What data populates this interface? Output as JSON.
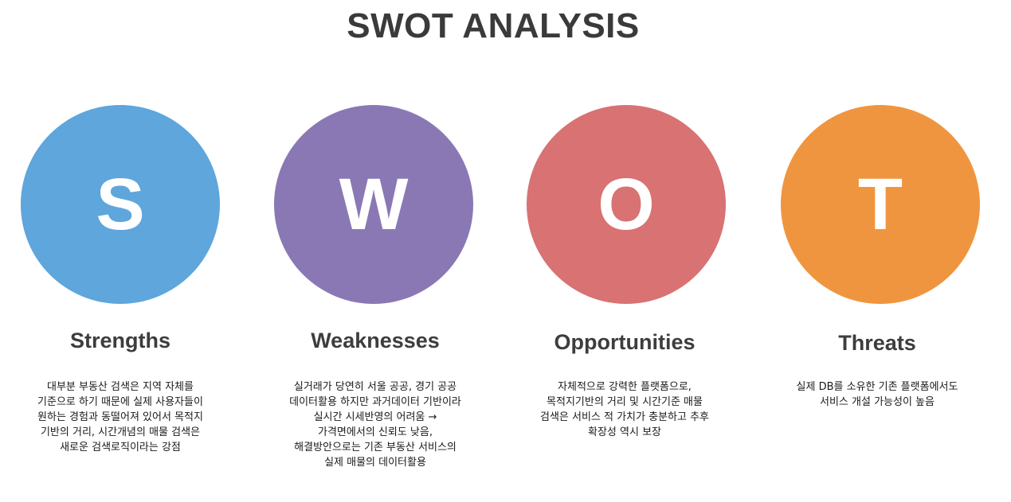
{
  "title": "SWOT ANALYSIS",
  "colors": {
    "strengths": "#5ea6dc",
    "weaknesses": "#8a78b5",
    "opportunities": "#d87273",
    "threats": "#f0953f",
    "text": "#3a3a3a"
  },
  "items": [
    {
      "letter": "S",
      "heading": "Strengths",
      "lines": [
        "대부분 부동산 검색은 지역 자체를",
        "기준으로 하기 때문에 실제 사용자들이",
        "원하는 경험과 동떨어져 있어서 목적지",
        "기반의 거리, 시간개념의 매물 검색은",
        "새로운 검색로직이라는 강점"
      ]
    },
    {
      "letter": "W",
      "heading": "Weaknesses",
      "lines": [
        "실거래가 당연히 서울 공공, 경기 공공",
        "데이터활용 하지만 과거데이터 기반이라",
        "실시간 시세반영의 어려움 →",
        "가격면에서의 신뢰도 낮음,",
        "해결방안으로는 기존 부동산 서비스의",
        "실제 매물의 데이터활용"
      ]
    },
    {
      "letter": "O",
      "heading": "Opportunities",
      "lines": [
        "자체적으로 강력한 플랫폼으로,",
        "목적지기반의 거리 및 시간기준 매물",
        "검색은  서비스 적 가치가 충분하고 추후",
        "확장성 역시 보장"
      ]
    },
    {
      "letter": "T",
      "heading": "Threats",
      "lines": [
        "실제 DB를 소유한 기존 플랫폼에서도",
        "서비스 개설 가능성이 높음"
      ]
    }
  ]
}
